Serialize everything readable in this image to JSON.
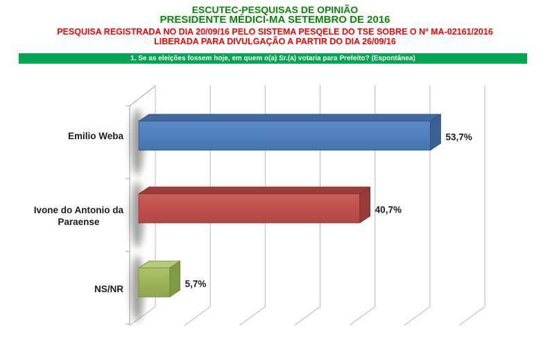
{
  "header": {
    "org_title": "ESCUTEC-PESQUISAS DE OPINIÃO",
    "subtitle": "PRESIDENTE MÉDICI-MA SETEMBRO DE 2016",
    "registration_line": "PESQUISA REGISTRADA NO DIA 20/09/16 PELO SISTEMA PESQELE DO TSE SOBRE O Nº MA-02161/2016",
    "release_line": "LIBERADA PARA DIVULGAÇÃO A PARTIR DO DIA 26/09/16",
    "title_color": "#0a870a",
    "notice_color": "#ff0000"
  },
  "question_banner": {
    "text": "1. Se as eleições fossem hoje, em quem o(a) Sr.(a) votaria para Prefeito? (Espontânea)",
    "background_color": "#00A651",
    "text_color": "#ffffff"
  },
  "chart_data": {
    "type": "bar",
    "orientation": "horizontal",
    "style": "3d",
    "title": "1. Se as eleições fossem hoje, em quem o(a) Sr.(a) votaria para Prefeito? (Espontânea)",
    "categories": [
      "Emilio Weba",
      "Ivone do Antonio da Paraense",
      "NS/NR"
    ],
    "category_label_lines": [
      [
        "Emilio Weba"
      ],
      [
        "Ivone do Antonio da",
        "Paraense"
      ],
      [
        "NS/NR"
      ]
    ],
    "values": [
      53.7,
      40.7,
      5.7
    ],
    "value_labels": [
      "53,7%",
      "40,7%",
      "5,7%"
    ],
    "xlabel": "",
    "ylabel": "",
    "xlim": [
      0,
      60
    ],
    "grid": true,
    "grid_interval": 10,
    "legend": "none",
    "label_color": "#1a1a1a",
    "grid_color": "#b5b5b5",
    "axis_color": "#a3a3a3",
    "bar_colors": [
      {
        "front": "#4f81bd",
        "front_light": "#5c89c4",
        "front_dark": "#4674ab",
        "top": "#40699c",
        "side": "#3a6191",
        "stroke": "#2e4d73"
      },
      {
        "front": "#c0504d",
        "front_light": "#c75f5c",
        "front_dark": "#b04744",
        "top": "#9d3e3b",
        "side": "#983b39",
        "stroke": "#7a2e2c"
      },
      {
        "front": "#9bb459",
        "front_light": "#aec16e",
        "front_dark": "#8ea64e",
        "top": "#b7c97c",
        "side": "#7e9b44",
        "stroke": "#6b8639"
      }
    ]
  }
}
